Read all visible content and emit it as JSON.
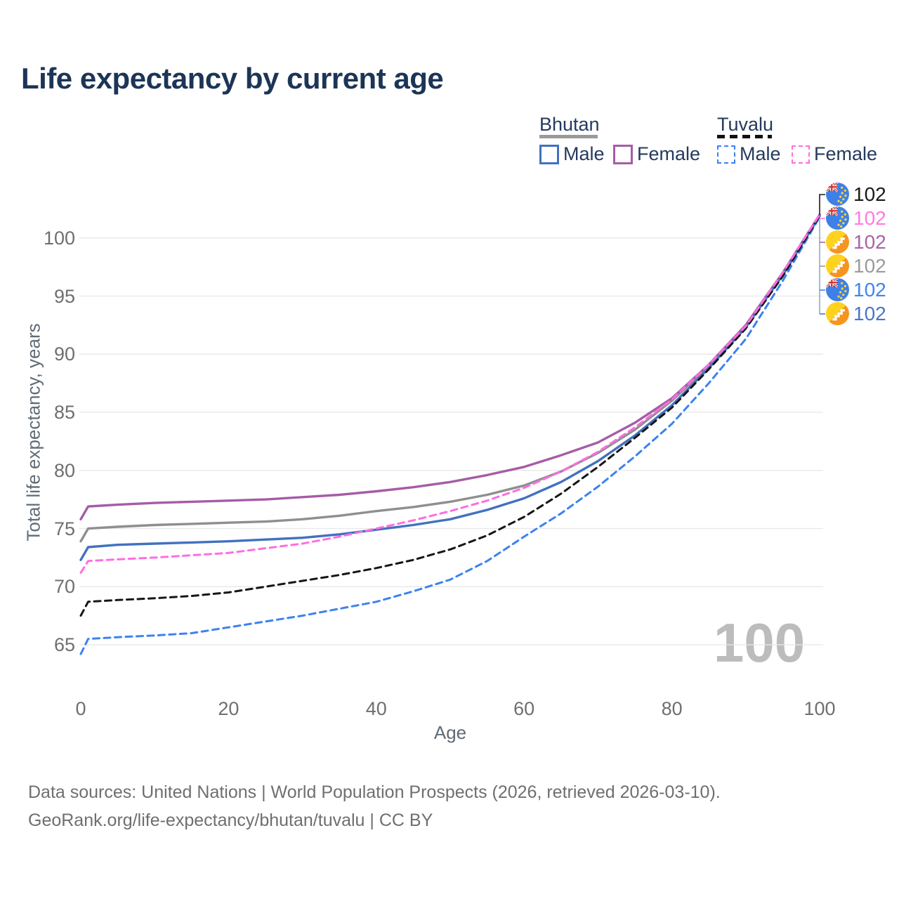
{
  "title": "Life expectancy by current age",
  "watermark": "100",
  "legend": {
    "groups": [
      {
        "country": "Bhutan",
        "line_style": "solid",
        "underline_color": "#9a9a9a",
        "items": [
          {
            "label": "Male",
            "color": "#4271bf",
            "dashed": false
          },
          {
            "label": "Female",
            "color": "#a65ca6",
            "dashed": false
          }
        ]
      },
      {
        "country": "Tuvalu",
        "line_style": "dashed",
        "underline_color": "#111111",
        "items": [
          {
            "label": "Male",
            "color": "#3c82f0",
            "dashed": true
          },
          {
            "label": "Female",
            "color": "#ff6de1",
            "dashed": true
          }
        ]
      }
    ]
  },
  "chart_data": {
    "type": "line",
    "title": "Life expectancy by current age",
    "xlabel": "Age",
    "ylabel": "Total life expectancy, years",
    "x_ticks": [
      0,
      20,
      40,
      60,
      80,
      100
    ],
    "y_ticks": [
      65,
      70,
      75,
      80,
      85,
      90,
      95,
      100
    ],
    "xlim": [
      0,
      100
    ],
    "ylim": [
      63.5,
      103
    ],
    "grid": true,
    "legend_position": "top-right",
    "x": [
      0,
      1,
      5,
      10,
      15,
      20,
      25,
      30,
      35,
      40,
      45,
      50,
      55,
      60,
      65,
      70,
      75,
      80,
      85,
      90,
      95,
      100
    ],
    "series": [
      {
        "name": "Bhutan",
        "country": "Bhutan",
        "sex": "Both",
        "color": "#8f8f8f",
        "dash": "solid",
        "values": [
          73.9,
          75.0,
          75.15,
          75.3,
          75.4,
          75.5,
          75.6,
          75.8,
          76.1,
          76.5,
          76.85,
          77.3,
          77.9,
          78.7,
          79.9,
          81.5,
          83.5,
          86.0,
          89.0,
          92.4,
          96.9,
          101.9
        ]
      },
      {
        "name": "Bhutan Female",
        "country": "Bhutan",
        "sex": "Female",
        "color": "#a65ca6",
        "dash": "solid",
        "values": [
          75.8,
          76.9,
          77.05,
          77.2,
          77.3,
          77.4,
          77.5,
          77.7,
          77.9,
          78.2,
          78.55,
          79.0,
          79.6,
          80.3,
          81.3,
          82.4,
          84.1,
          86.2,
          89.1,
          92.5,
          97.0,
          102.0
        ]
      },
      {
        "name": "Bhutan Male",
        "country": "Bhutan",
        "sex": "Male",
        "color": "#4271bf",
        "dash": "solid",
        "values": [
          72.3,
          73.4,
          73.6,
          73.7,
          73.8,
          73.9,
          74.05,
          74.2,
          74.5,
          74.9,
          75.3,
          75.8,
          76.6,
          77.6,
          79.0,
          80.8,
          83.0,
          85.6,
          88.8,
          92.3,
          96.8,
          101.9
        ]
      },
      {
        "name": "Tuvalu Male",
        "country": "Tuvalu",
        "sex": "Male",
        "color": "#3c82f0",
        "dash": "dashed",
        "values": [
          64.2,
          65.5,
          65.65,
          65.8,
          66.0,
          66.5,
          67.0,
          67.5,
          68.1,
          68.7,
          69.6,
          70.6,
          72.2,
          74.3,
          76.3,
          78.6,
          81.2,
          84.0,
          87.5,
          91.3,
          96.3,
          101.8
        ]
      },
      {
        "name": "Tuvalu",
        "country": "Tuvalu",
        "sex": "Both",
        "color": "#161616",
        "dash": "dashed",
        "values": [
          67.5,
          68.7,
          68.85,
          69.0,
          69.2,
          69.5,
          70.0,
          70.5,
          71.0,
          71.6,
          72.3,
          73.2,
          74.4,
          76.0,
          78.0,
          80.3,
          82.8,
          85.4,
          88.7,
          92.2,
          96.7,
          101.9
        ]
      },
      {
        "name": "Tuvalu Female",
        "country": "Tuvalu",
        "sex": "Female",
        "color": "#ff6de1",
        "dash": "dashed",
        "values": [
          71.2,
          72.2,
          72.35,
          72.5,
          72.7,
          72.9,
          73.3,
          73.7,
          74.3,
          75.0,
          75.7,
          76.5,
          77.4,
          78.5,
          79.9,
          81.6,
          83.7,
          86.1,
          89.1,
          92.4,
          97.0,
          102.0
        ]
      }
    ],
    "end_labels": [
      {
        "value": "102",
        "series": "Tuvalu",
        "flag": "tuvalu",
        "color": "#1a1a1a"
      },
      {
        "value": "102",
        "series": "Tuvalu Female",
        "flag": "tuvalu",
        "color": "#ff7ae2"
      },
      {
        "value": "102",
        "series": "Bhutan Female",
        "flag": "bhutan",
        "color": "#a765a7"
      },
      {
        "value": "102",
        "series": "Bhutan",
        "flag": "bhutan",
        "color": "#9b9b9b"
      },
      {
        "value": "102",
        "series": "Tuvalu Male",
        "flag": "tuvalu",
        "color": "#3d85f0"
      },
      {
        "value": "102",
        "series": "Bhutan Male",
        "flag": "bhutan",
        "color": "#4a76c8"
      }
    ]
  },
  "footer": {
    "line1": "Data sources: United Nations | World Population Prospects (2026, retrieved 2026-03-10).",
    "line2": "GeoRank.org/life-expectancy/bhutan/tuvalu | CC BY"
  }
}
